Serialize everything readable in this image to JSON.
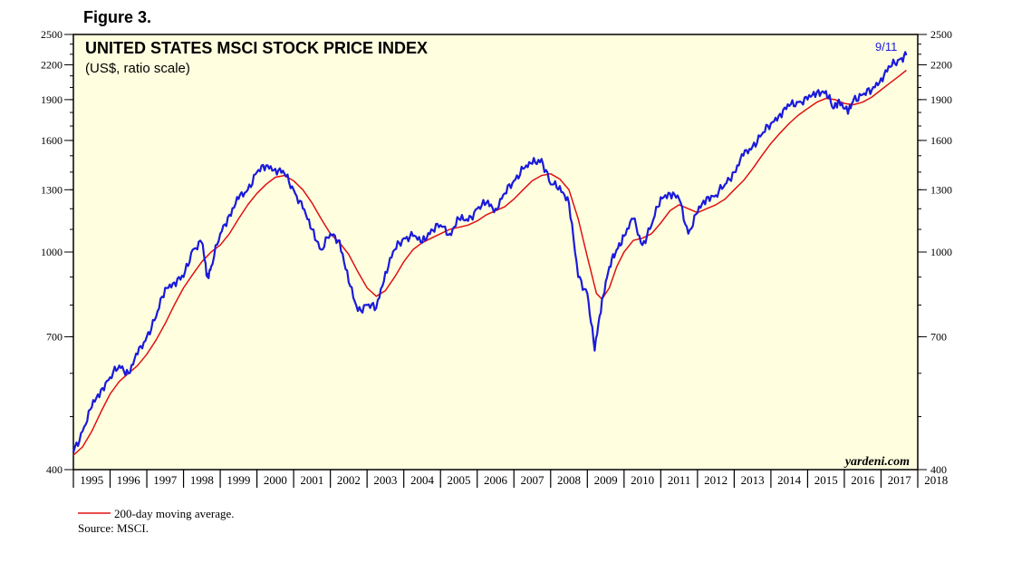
{
  "figure_label": "Figure 3.",
  "chart_data": {
    "type": "line",
    "title": "UNITED STATES MSCI STOCK PRICE INDEX",
    "subtitle": "(US$, ratio scale)",
    "y_scale": "log",
    "ylim": [
      400,
      2500
    ],
    "y_ticks": [
      400,
      700,
      1000,
      1300,
      1600,
      1900,
      2200,
      2500
    ],
    "x_range": [
      1995.0,
      2018.0
    ],
    "x_tick_labels": [
      "1995",
      "1996",
      "1997",
      "1998",
      "1999",
      "2000",
      "2001",
      "2002",
      "2003",
      "2004",
      "2005",
      "2006",
      "2007",
      "2008",
      "2009",
      "2010",
      "2011",
      "2012",
      "2013",
      "2014",
      "2015",
      "2016",
      "2017",
      "2018"
    ],
    "last_value_label": "9/11",
    "watermark": "yardeni.com",
    "legend_entry": "200-day moving average.",
    "source": "Source: MSCI.",
    "colors": {
      "index": "#1a1adb",
      "moving_average": "#e01010",
      "plot_bg": "#ffffe0"
    },
    "series": [
      {
        "color": "#1a1adb",
        "points": [
          [
            1995.0,
            430
          ],
          [
            1995.25,
            470
          ],
          [
            1995.5,
            520
          ],
          [
            1995.75,
            560
          ],
          [
            1996.0,
            590
          ],
          [
            1996.25,
            620
          ],
          [
            1996.5,
            600
          ],
          [
            1996.75,
            650
          ],
          [
            1997.0,
            700
          ],
          [
            1997.25,
            760
          ],
          [
            1997.5,
            860
          ],
          [
            1997.75,
            880
          ],
          [
            1998.0,
            900
          ],
          [
            1998.25,
            1010
          ],
          [
            1998.5,
            1040
          ],
          [
            1998.65,
            900
          ],
          [
            1998.75,
            940
          ],
          [
            1999.0,
            1080
          ],
          [
            1999.25,
            1170
          ],
          [
            1999.5,
            1250
          ],
          [
            1999.75,
            1300
          ],
          [
            2000.0,
            1400
          ],
          [
            2000.25,
            1440
          ],
          [
            2000.5,
            1420
          ],
          [
            2000.75,
            1390
          ],
          [
            2001.0,
            1300
          ],
          [
            2001.25,
            1200
          ],
          [
            2001.5,
            1100
          ],
          [
            2001.75,
            1010
          ],
          [
            2002.0,
            1080
          ],
          [
            2002.25,
            1050
          ],
          [
            2002.5,
            880
          ],
          [
            2002.75,
            780
          ],
          [
            2003.0,
            800
          ],
          [
            2003.25,
            790
          ],
          [
            2003.5,
            920
          ],
          [
            2003.75,
            1010
          ],
          [
            2004.0,
            1060
          ],
          [
            2004.25,
            1070
          ],
          [
            2004.5,
            1040
          ],
          [
            2004.75,
            1100
          ],
          [
            2005.0,
            1120
          ],
          [
            2005.25,
            1080
          ],
          [
            2005.5,
            1150
          ],
          [
            2005.75,
            1140
          ],
          [
            2006.0,
            1200
          ],
          [
            2006.25,
            1230
          ],
          [
            2006.5,
            1200
          ],
          [
            2006.75,
            1280
          ],
          [
            2007.0,
            1350
          ],
          [
            2007.25,
            1420
          ],
          [
            2007.5,
            1450
          ],
          [
            2007.75,
            1480
          ],
          [
            2008.0,
            1330
          ],
          [
            2008.25,
            1320
          ],
          [
            2008.5,
            1230
          ],
          [
            2008.75,
            900
          ],
          [
            2009.0,
            840
          ],
          [
            2009.2,
            660
          ],
          [
            2009.4,
            820
          ],
          [
            2009.6,
            940
          ],
          [
            2009.8,
            1010
          ],
          [
            2010.0,
            1070
          ],
          [
            2010.25,
            1150
          ],
          [
            2010.5,
            1030
          ],
          [
            2010.75,
            1120
          ],
          [
            2011.0,
            1260
          ],
          [
            2011.25,
            1280
          ],
          [
            2011.5,
            1250
          ],
          [
            2011.75,
            1080
          ],
          [
            2012.0,
            1180
          ],
          [
            2012.25,
            1260
          ],
          [
            2012.5,
            1270
          ],
          [
            2012.75,
            1330
          ],
          [
            2013.0,
            1400
          ],
          [
            2013.25,
            1500
          ],
          [
            2013.5,
            1560
          ],
          [
            2013.75,
            1640
          ],
          [
            2014.0,
            1720
          ],
          [
            2014.25,
            1790
          ],
          [
            2014.5,
            1850
          ],
          [
            2014.75,
            1880
          ],
          [
            2015.0,
            1900
          ],
          [
            2015.25,
            1960
          ],
          [
            2015.5,
            1970
          ],
          [
            2015.7,
            1830
          ],
          [
            2015.85,
            1900
          ],
          [
            2016.1,
            1790
          ],
          [
            2016.25,
            1900
          ],
          [
            2016.5,
            1940
          ],
          [
            2016.75,
            1980
          ],
          [
            2017.0,
            2080
          ],
          [
            2017.25,
            2180
          ],
          [
            2017.5,
            2250
          ],
          [
            2017.69,
            2290
          ]
        ]
      },
      {
        "name": "200-day moving average.",
        "color": "#e01010",
        "points": [
          [
            1995.0,
            425
          ],
          [
            1995.25,
            440
          ],
          [
            1995.5,
            470
          ],
          [
            1995.75,
            510
          ],
          [
            1996.0,
            550
          ],
          [
            1996.25,
            580
          ],
          [
            1996.5,
            600
          ],
          [
            1996.75,
            620
          ],
          [
            1997.0,
            650
          ],
          [
            1997.25,
            690
          ],
          [
            1997.5,
            740
          ],
          [
            1997.75,
            800
          ],
          [
            1998.0,
            860
          ],
          [
            1998.25,
            910
          ],
          [
            1998.5,
            960
          ],
          [
            1998.75,
            1000
          ],
          [
            1999.0,
            1030
          ],
          [
            1999.25,
            1080
          ],
          [
            1999.5,
            1150
          ],
          [
            1999.75,
            1220
          ],
          [
            2000.0,
            1280
          ],
          [
            2000.25,
            1330
          ],
          [
            2000.5,
            1370
          ],
          [
            2000.75,
            1380
          ],
          [
            2001.0,
            1350
          ],
          [
            2001.25,
            1300
          ],
          [
            2001.5,
            1230
          ],
          [
            2001.75,
            1150
          ],
          [
            2002.0,
            1080
          ],
          [
            2002.25,
            1040
          ],
          [
            2002.5,
            990
          ],
          [
            2002.75,
            920
          ],
          [
            2003.0,
            860
          ],
          [
            2003.25,
            830
          ],
          [
            2003.5,
            850
          ],
          [
            2003.75,
            900
          ],
          [
            2004.0,
            960
          ],
          [
            2004.25,
            1010
          ],
          [
            2004.5,
            1040
          ],
          [
            2004.75,
            1060
          ],
          [
            2005.0,
            1080
          ],
          [
            2005.25,
            1100
          ],
          [
            2005.5,
            1110
          ],
          [
            2005.75,
            1120
          ],
          [
            2006.0,
            1140
          ],
          [
            2006.25,
            1170
          ],
          [
            2006.5,
            1190
          ],
          [
            2006.75,
            1210
          ],
          [
            2007.0,
            1250
          ],
          [
            2007.25,
            1300
          ],
          [
            2007.5,
            1350
          ],
          [
            2007.75,
            1380
          ],
          [
            2008.0,
            1390
          ],
          [
            2008.25,
            1360
          ],
          [
            2008.5,
            1300
          ],
          [
            2008.75,
            1150
          ],
          [
            2009.0,
            980
          ],
          [
            2009.25,
            840
          ],
          [
            2009.4,
            820
          ],
          [
            2009.6,
            860
          ],
          [
            2009.8,
            940
          ],
          [
            2010.0,
            1000
          ],
          [
            2010.25,
            1050
          ],
          [
            2010.5,
            1060
          ],
          [
            2010.75,
            1080
          ],
          [
            2011.0,
            1130
          ],
          [
            2011.25,
            1190
          ],
          [
            2011.5,
            1220
          ],
          [
            2011.75,
            1200
          ],
          [
            2012.0,
            1180
          ],
          [
            2012.25,
            1200
          ],
          [
            2012.5,
            1220
          ],
          [
            2012.75,
            1250
          ],
          [
            2013.0,
            1300
          ],
          [
            2013.25,
            1350
          ],
          [
            2013.5,
            1420
          ],
          [
            2013.75,
            1500
          ],
          [
            2014.0,
            1580
          ],
          [
            2014.25,
            1650
          ],
          [
            2014.5,
            1720
          ],
          [
            2014.75,
            1780
          ],
          [
            2015.0,
            1830
          ],
          [
            2015.25,
            1880
          ],
          [
            2015.5,
            1910
          ],
          [
            2015.75,
            1900
          ],
          [
            2016.0,
            1870
          ],
          [
            2016.25,
            1860
          ],
          [
            2016.5,
            1880
          ],
          [
            2016.75,
            1920
          ],
          [
            2017.0,
            1980
          ],
          [
            2017.25,
            2040
          ],
          [
            2017.5,
            2100
          ],
          [
            2017.69,
            2150
          ]
        ]
      }
    ]
  }
}
